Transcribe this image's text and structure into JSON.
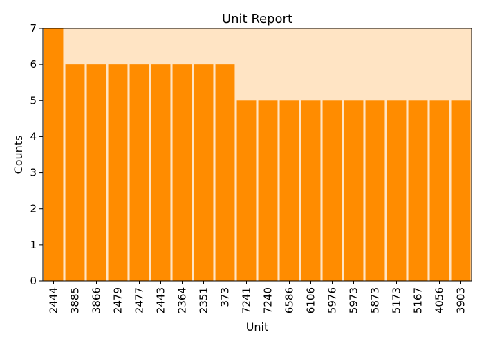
{
  "chart_data": {
    "type": "bar",
    "title": "Unit Report",
    "xlabel": "Unit",
    "ylabel": "Counts",
    "ylim": [
      0,
      7
    ],
    "yticks": [
      "0",
      "1",
      "2",
      "3",
      "4",
      "5",
      "6",
      "7"
    ],
    "grid": false,
    "legend": "none",
    "categories": [
      "2444",
      "3885",
      "3866",
      "2479",
      "2477",
      "2443",
      "2364",
      "2351",
      "373",
      "7241",
      "7240",
      "6586",
      "6106",
      "5976",
      "5973",
      "5873",
      "5173",
      "5167",
      "4056",
      "3903"
    ],
    "values": [
      7,
      6,
      6,
      6,
      6,
      6,
      6,
      6,
      6,
      5,
      5,
      5,
      5,
      5,
      5,
      5,
      5,
      5,
      5,
      5
    ],
    "colors": {
      "bar": "#ff8c00",
      "background": "#ffe4c4",
      "bar_edge": "#ffe4c4"
    }
  }
}
